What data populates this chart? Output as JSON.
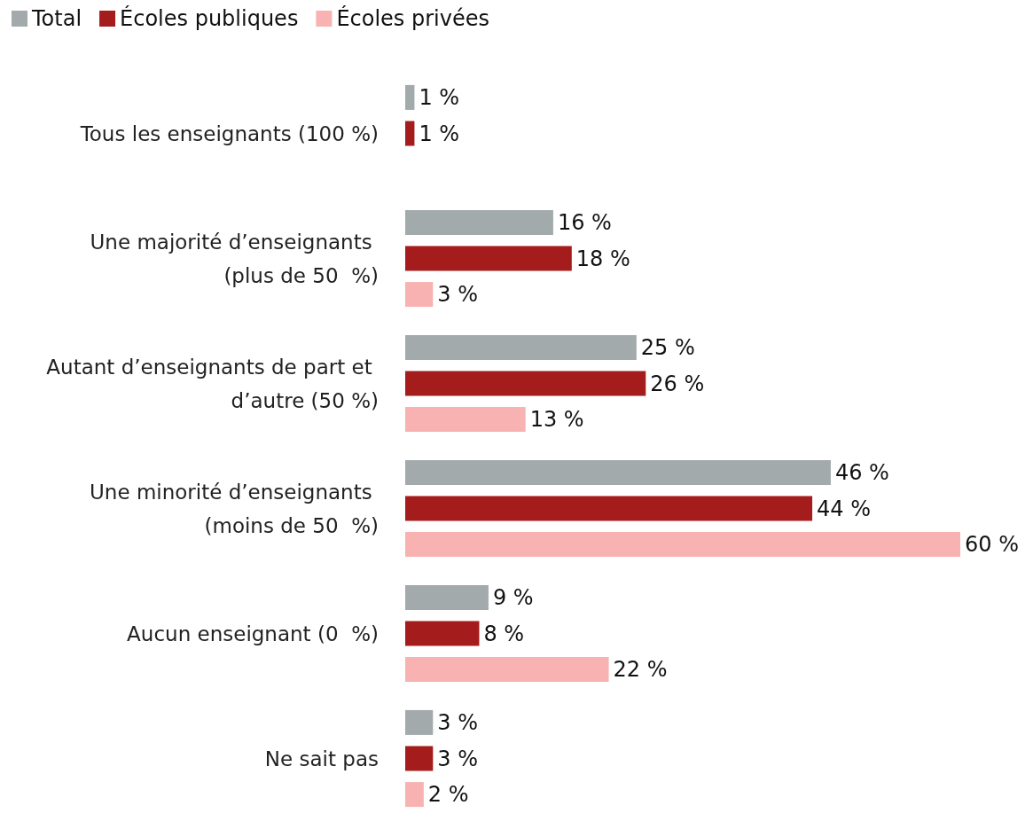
{
  "chart_data": {
    "type": "bar",
    "orientation": "horizontal",
    "legend": "top left",
    "categories": [
      "Tous les enseignants (100 %)",
      "Une majorité d’enseignants (plus de 50  %)",
      "Autant d’enseignants de part et d’autre (50 %)",
      "Une minorité d’enseignants (moins de 50  %)",
      "Aucun enseignant (0  %)",
      "Ne sait pas"
    ],
    "series": [
      {
        "name": "Total",
        "color": "#a3aaab",
        "values": [
          1,
          16,
          25,
          46,
          9,
          3
        ],
        "value_labels": [
          "1 %",
          "16 %",
          "25 %",
          "46 %",
          "9 %",
          "3 %"
        ]
      },
      {
        "name": "Écoles publiques",
        "color": "#a51c1c",
        "values": [
          1,
          18,
          26,
          44,
          8,
          3
        ],
        "value_labels": [
          "1 %",
          "18 %",
          "26 %",
          "44 %",
          "8 %",
          "3 %"
        ]
      },
      {
        "name": "Écoles privées",
        "color": "#f7b2b1",
        "values": [
          null,
          3,
          13,
          60,
          22,
          2
        ],
        "value_labels": [
          null,
          "3 %",
          "13 %",
          "60 %",
          "22 %",
          "2 %"
        ]
      }
    ]
  }
}
